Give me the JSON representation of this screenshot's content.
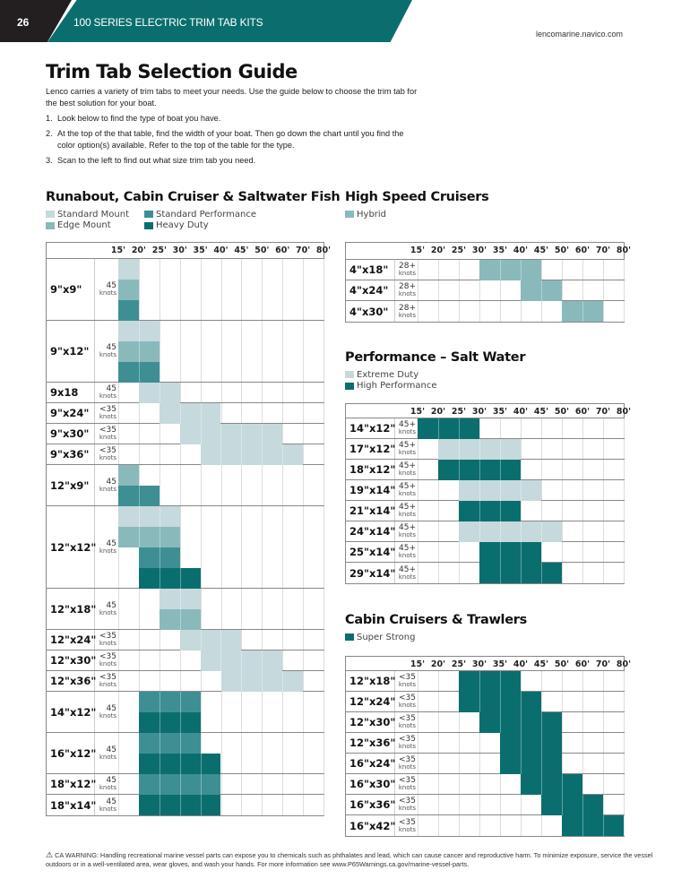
{
  "header": {
    "page_number": "26",
    "section_title": "100 SERIES ELECTRIC TRIM TAB KITS",
    "website": "lencomarine.navico.com"
  },
  "title": "Trim Tab Selection Guide",
  "intro": "Lenco carries a variety of trim tabs to meet your needs. Use the guide below to choose the trim tab for the best solution for your boat.",
  "steps": [
    {
      "num": "1.",
      "text": "Look below to find the type of boat you have."
    },
    {
      "num": "2.",
      "text": "At the top of the that table, find the width of your boat. Then go down the chart until you find the color option(s) available. Refer to the top of the table for the type."
    },
    {
      "num": "3.",
      "text": "Scan to the left to find out what size trim tab you need."
    }
  ],
  "colors": {
    "standard_mount": "#c6d9dc",
    "edge_mount": "#8ab9bc",
    "standard_performance": "#3e8f94",
    "heavy_duty": "#0b6e6e",
    "hybrid": "#8ab9bc",
    "extreme_duty": "#c6d9dc",
    "high_performance": "#0b6e6e",
    "super_strong": "#0b6e6e",
    "brand_teal": "#0b6e6e"
  },
  "boat_lengths": [
    "15'",
    "20'",
    "25'",
    "30'",
    "35'",
    "40'",
    "45'",
    "50'",
    "60'",
    "70'",
    "80'"
  ],
  "knots_label": "knots",
  "sections": [
    {
      "title": "Runabout, Cabin Cruiser & Saltwater Fish",
      "legend": [
        {
          "key": "standard_mount",
          "label": "Standard Mount"
        },
        {
          "key": "edge_mount",
          "label": "Edge Mount"
        },
        {
          "key": "standard_performance",
          "label": "Standard Performance"
        },
        {
          "key": "heavy_duty",
          "label": "Heavy Duty"
        }
      ],
      "rows": [
        {
          "size": "9\"x9\"",
          "speed": "45",
          "bands": [
            [
              [
                "standard_mount",
                15,
                20
              ]
            ],
            [
              [
                "edge_mount",
                15,
                20
              ]
            ],
            [
              [
                "standard_performance",
                15,
                20
              ]
            ]
          ]
        },
        {
          "size": "9\"x12\"",
          "speed": "45",
          "bands": [
            [
              [
                "standard_mount",
                15,
                25
              ]
            ],
            [
              [
                "edge_mount",
                15,
                25
              ]
            ],
            [
              [
                "standard_performance",
                15,
                25
              ]
            ]
          ]
        },
        {
          "size": "9x18",
          "speed": "45",
          "bands": [
            [
              [
                "standard_mount",
                20,
                30
              ]
            ]
          ]
        },
        {
          "size": "9\"x24\"",
          "speed": "<35",
          "bands": [
            [
              [
                "standard_mount",
                25,
                40
              ]
            ]
          ]
        },
        {
          "size": "9\"x30\"",
          "speed": "<35",
          "bands": [
            [
              [
                "standard_mount",
                30,
                60
              ]
            ]
          ]
        },
        {
          "size": "9\"x36\"",
          "speed": "<35",
          "bands": [
            [
              [
                "standard_mount",
                35,
                70
              ]
            ]
          ]
        },
        {
          "size": "12\"x9\"",
          "speed": "45",
          "bands": [
            [
              [
                "edge_mount",
                15,
                20
              ]
            ],
            [
              [
                "standard_performance",
                15,
                25
              ]
            ]
          ]
        },
        {
          "size": "12\"x12\"",
          "speed": "45",
          "bands": [
            [
              [
                "standard_mount",
                15,
                30
              ]
            ],
            [
              [
                "edge_mount",
                15,
                30
              ]
            ],
            [
              [
                "standard_performance",
                20,
                30
              ]
            ],
            [
              [
                "heavy_duty",
                20,
                35
              ]
            ]
          ]
        },
        {
          "size": "12\"x18\"",
          "speed": "45",
          "bands": [
            [
              [
                "standard_mount",
                25,
                35
              ]
            ],
            [
              [
                "edge_mount",
                25,
                35
              ]
            ]
          ]
        },
        {
          "size": "12\"x24\"",
          "speed": "<35",
          "bands": [
            [
              [
                "standard_mount",
                30,
                45
              ]
            ]
          ]
        },
        {
          "size": "12\"x30\"",
          "speed": "<35",
          "bands": [
            [
              [
                "standard_mount",
                35,
                60
              ]
            ]
          ]
        },
        {
          "size": "12\"x36\"",
          "speed": "<35",
          "bands": [
            [
              [
                "standard_mount",
                40,
                70
              ]
            ]
          ]
        },
        {
          "size": "14\"x12\"",
          "speed": "45",
          "bands": [
            [
              [
                "standard_performance",
                20,
                35
              ]
            ],
            [
              [
                "heavy_duty",
                20,
                35
              ]
            ]
          ]
        },
        {
          "size": "16\"x12\"",
          "speed": "45",
          "bands": [
            [
              [
                "standard_performance",
                20,
                35
              ]
            ],
            [
              [
                "heavy_duty",
                20,
                40
              ]
            ]
          ]
        },
        {
          "size": "18\"x12\"",
          "speed": "45",
          "bands": [
            [
              [
                "standard_performance",
                20,
                40
              ]
            ]
          ]
        },
        {
          "size": "18\"x14\"",
          "speed": "45",
          "bands": [
            [
              [
                "heavy_duty",
                20,
                40
              ]
            ]
          ]
        }
      ]
    },
    {
      "title": "High Speed Cruisers",
      "legend": [
        {
          "key": "hybrid",
          "label": "Hybrid"
        }
      ],
      "rows": [
        {
          "size": "4\"x18\"",
          "speed": "28+",
          "bands": [
            [
              [
                "hybrid",
                30,
                45
              ]
            ]
          ]
        },
        {
          "size": "4\"x24\"",
          "speed": "28+",
          "bands": [
            [
              [
                "hybrid",
                40,
                50
              ]
            ]
          ]
        },
        {
          "size": "4\"x30\"",
          "speed": "28+",
          "bands": [
            [
              [
                "hybrid",
                50,
                70
              ]
            ]
          ]
        }
      ]
    },
    {
      "title": "Performance – Salt Water",
      "legend": [
        {
          "key": "extreme_duty",
          "label": "Extreme Duty"
        },
        {
          "key": "high_performance",
          "label": "High Performance"
        }
      ],
      "rows": [
        {
          "size": "14\"x12\"",
          "speed": "45+",
          "bands": [
            [
              [
                "high_performance",
                15,
                30
              ]
            ]
          ]
        },
        {
          "size": "17\"x12\"",
          "speed": "45+",
          "bands": [
            [
              [
                "extreme_duty",
                20,
                40
              ]
            ]
          ]
        },
        {
          "size": "18\"x12\"",
          "speed": "45+",
          "bands": [
            [
              [
                "high_performance",
                20,
                40
              ]
            ]
          ]
        },
        {
          "size": "19\"x14\"",
          "speed": "45+",
          "bands": [
            [
              [
                "extreme_duty",
                25,
                45
              ]
            ]
          ]
        },
        {
          "size": "21\"x14\"",
          "speed": "45+",
          "bands": [
            [
              [
                "high_performance",
                25,
                40
              ]
            ]
          ]
        },
        {
          "size": "24\"x14\"",
          "speed": "45+",
          "bands": [
            [
              [
                "extreme_duty",
                25,
                50
              ]
            ]
          ]
        },
        {
          "size": "25\"x14\"",
          "speed": "45+",
          "bands": [
            [
              [
                "high_performance",
                30,
                45
              ]
            ]
          ]
        },
        {
          "size": "29\"x14\"",
          "speed": "45+",
          "bands": [
            [
              [
                "high_performance",
                30,
                50
              ]
            ]
          ]
        }
      ]
    },
    {
      "title": "Cabin Cruisers & Trawlers",
      "legend": [
        {
          "key": "super_strong",
          "label": "Super Strong"
        }
      ],
      "rows": [
        {
          "size": "12\"x18\"",
          "speed": "<35",
          "bands": [
            [
              [
                "super_strong",
                25,
                40
              ]
            ]
          ]
        },
        {
          "size": "12\"x24\"",
          "speed": "<35",
          "bands": [
            [
              [
                "super_strong",
                25,
                45
              ]
            ]
          ]
        },
        {
          "size": "12\"x30\"",
          "speed": "<35",
          "bands": [
            [
              [
                "super_strong",
                30,
                50
              ]
            ]
          ]
        },
        {
          "size": "12\"x36\"",
          "speed": "<35",
          "bands": [
            [
              [
                "super_strong",
                35,
                50
              ]
            ]
          ]
        },
        {
          "size": "16\"x24\"",
          "speed": "<35",
          "bands": [
            [
              [
                "super_strong",
                35,
                50
              ]
            ]
          ]
        },
        {
          "size": "16\"x30\"",
          "speed": "<35",
          "bands": [
            [
              [
                "super_strong",
                40,
                60
              ]
            ]
          ]
        },
        {
          "size": "16\"x36\"",
          "speed": "<35",
          "bands": [
            [
              [
                "super_strong",
                45,
                70
              ]
            ]
          ]
        },
        {
          "size": "16\"x42\"",
          "speed": "<35",
          "bands": [
            [
              [
                "super_strong",
                50,
                80
              ]
            ]
          ]
        }
      ]
    }
  ],
  "warning": {
    "icon": "warning-triangle-icon",
    "text": "CA WARNING: Handling recreational marine vessel parts can expose you to chemicals such as phthalates and lead, which can cause cancer and reproductive harm. To minimize exposure, service the vessel outdoors or in a well-ventilated area, wear gloves, and wash your hands. For more information see www.P65Warnings.ca.gov/marine-vessel-parts."
  }
}
